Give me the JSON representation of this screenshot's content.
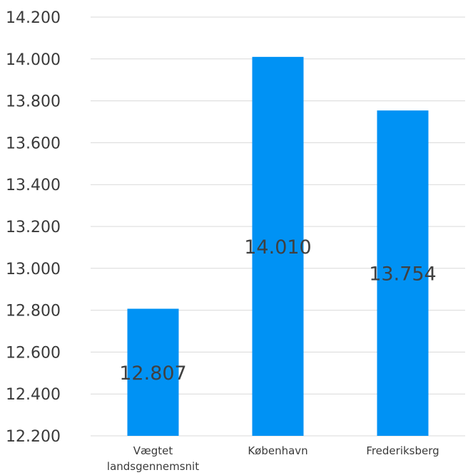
{
  "chart_data": {
    "type": "bar",
    "title": "",
    "xlabel": "",
    "ylabel": "",
    "categories": [
      "Vægtet landsgennemsnit",
      "København",
      "Frederiksberg"
    ],
    "category_label_lines": [
      [
        "Vægtet",
        "landsgennemsnit"
      ],
      [
        "København"
      ],
      [
        "Frederiksberg"
      ]
    ],
    "values": [
      12807,
      14010,
      13754
    ],
    "data_labels": [
      "12.807",
      "14.010",
      "13.754"
    ],
    "ylim": [
      12200,
      14200
    ],
    "yticks": [
      12200,
      12400,
      12600,
      12800,
      13000,
      13200,
      13400,
      13600,
      13800,
      14000,
      14200
    ],
    "ytick_labels": [
      "12.200",
      "12.400",
      "12.600",
      "12.800",
      "13.000",
      "13.200",
      "13.400",
      "13.600",
      "13.800",
      "14.000",
      "14.200"
    ],
    "grid": true,
    "legend": "none",
    "bar_color": "#0092F4"
  }
}
